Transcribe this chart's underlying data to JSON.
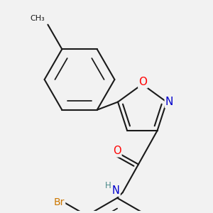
{
  "bg_color": "#f2f2f2",
  "bond_color": "#1a1a1a",
  "bond_width": 1.5,
  "atom_colors": {
    "O": "#ff0000",
    "N": "#0000cc",
    "Br": "#cc7700",
    "C": "#1a1a1a",
    "H": "#4a8a8a"
  },
  "font_size": 9.5,
  "fig_size": [
    3.0,
    3.0
  ],
  "dpi": 100
}
